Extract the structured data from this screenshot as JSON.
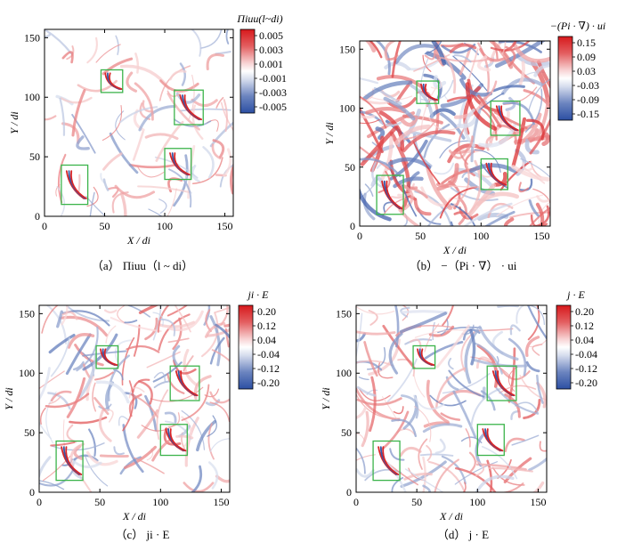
{
  "chart_data": [
    {
      "type": "heatmap",
      "panel": "a",
      "caption": "（a） Πiuu（l ~ di）",
      "xlabel": "X / di",
      "ylabel": "Y / di",
      "xlim": [
        0,
        157
      ],
      "ylim": [
        0,
        157
      ],
      "xticks": [
        "0",
        "50",
        "100",
        "150"
      ],
      "yticks": [
        "0",
        "50",
        "100",
        "150"
      ],
      "colorbar": {
        "title": "Πiuu(l~di)",
        "ticks": [
          "0.005",
          "0.003",
          "0.001",
          "-0.001",
          "-0.003",
          "-0.005"
        ],
        "range": [
          -0.005,
          0.005
        ]
      },
      "boxes": [
        {
          "x0": 14,
          "x1": 36,
          "y0": 10,
          "y1": 43
        },
        {
          "x0": 47,
          "x1": 65,
          "y0": 104,
          "y1": 123
        },
        {
          "x0": 100,
          "x1": 122,
          "y0": 31,
          "y1": 57
        },
        {
          "x0": 108,
          "x1": 132,
          "y0": 77,
          "y1": 106
        }
      ]
    },
    {
      "type": "heatmap",
      "panel": "b",
      "caption": "（b） −（Pi · ∇） · ui",
      "xlabel": "X / di",
      "ylabel": "Y / di",
      "xlim": [
        0,
        157
      ],
      "ylim": [
        0,
        157
      ],
      "xticks": [
        "0",
        "50",
        "100",
        "150"
      ],
      "yticks": [
        "0",
        "50",
        "100",
        "150"
      ],
      "colorbar": {
        "title": "−(Pi · ∇) · ui",
        "ticks": [
          "0.15",
          "0.09",
          "0.03",
          "-0.03",
          "-0.09",
          "-0.15"
        ],
        "range": [
          -0.15,
          0.15
        ]
      },
      "boxes": [
        {
          "x0": 14,
          "x1": 36,
          "y0": 10,
          "y1": 43
        },
        {
          "x0": 47,
          "x1": 65,
          "y0": 104,
          "y1": 123
        },
        {
          "x0": 100,
          "x1": 122,
          "y0": 31,
          "y1": 57
        },
        {
          "x0": 108,
          "x1": 132,
          "y0": 77,
          "y1": 106
        }
      ]
    },
    {
      "type": "heatmap",
      "panel": "c",
      "caption": "（c） ji · E",
      "xlabel": "X / di",
      "ylabel": "Y / di",
      "xlim": [
        0,
        157
      ],
      "ylim": [
        0,
        157
      ],
      "xticks": [
        "0",
        "50",
        "100",
        "150"
      ],
      "yticks": [
        "0",
        "50",
        "100",
        "150"
      ],
      "colorbar": {
        "title": "ji · E",
        "ticks": [
          "0.20",
          "0.12",
          "0.04",
          "-0.04",
          "-0.12",
          "-0.20"
        ],
        "range": [
          -0.2,
          0.2
        ]
      },
      "boxes": [
        {
          "x0": 14,
          "x1": 36,
          "y0": 10,
          "y1": 43
        },
        {
          "x0": 47,
          "x1": 65,
          "y0": 104,
          "y1": 123
        },
        {
          "x0": 100,
          "x1": 122,
          "y0": 31,
          "y1": 57
        },
        {
          "x0": 108,
          "x1": 132,
          "y0": 77,
          "y1": 106
        }
      ]
    },
    {
      "type": "heatmap",
      "panel": "d",
      "caption": "（d） j · E",
      "xlabel": "X / di",
      "ylabel": "Y / di",
      "xlim": [
        0,
        157
      ],
      "ylim": [
        0,
        157
      ],
      "xticks": [
        "0",
        "50",
        "100",
        "150"
      ],
      "yticks": [
        "0",
        "50",
        "100",
        "150"
      ],
      "colorbar": {
        "title": "j · E",
        "ticks": [
          "0.20",
          "0.12",
          "0.04",
          "-0.04",
          "-0.12",
          "-0.20"
        ],
        "range": [
          -0.2,
          0.2
        ]
      },
      "boxes": [
        {
          "x0": 14,
          "x1": 36,
          "y0": 10,
          "y1": 43
        },
        {
          "x0": 47,
          "x1": 65,
          "y0": 104,
          "y1": 123
        },
        {
          "x0": 100,
          "x1": 122,
          "y0": 31,
          "y1": 57
        },
        {
          "x0": 108,
          "x1": 132,
          "y0": 77,
          "y1": 106
        }
      ]
    }
  ],
  "colors": {
    "positive": "#d7191c",
    "neutral": "#ffffff",
    "negative": "#2c4fa3",
    "box": "#3cb44b"
  }
}
